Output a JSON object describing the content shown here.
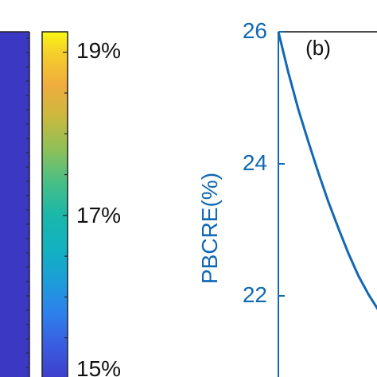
{
  "chart_data": [
    {
      "type": "heatmap",
      "colorbar": {
        "tick_labels": [
          "19%",
          "17%",
          "15%"
        ],
        "tick_values": [
          19,
          17,
          15
        ],
        "colormap": "parula",
        "stops": [
          {
            "value": 15,
            "color": "#3e3ecc"
          },
          {
            "value": 15.4,
            "color": "#3a5ce0"
          },
          {
            "value": 15.8,
            "color": "#2e80ec"
          },
          {
            "value": 16.2,
            "color": "#1c9ed8"
          },
          {
            "value": 16.6,
            "color": "#12b2c0"
          },
          {
            "value": 17.0,
            "color": "#1ab7ab"
          },
          {
            "value": 17.4,
            "color": "#47bf86"
          },
          {
            "value": 17.8,
            "color": "#8cc05a"
          },
          {
            "value": 18.2,
            "color": "#c9b93e"
          },
          {
            "value": 18.6,
            "color": "#f0ac3e"
          },
          {
            "value": 19.0,
            "color": "#f5d02a"
          },
          {
            "value": 19.25,
            "color": "#f9f712"
          }
        ]
      },
      "heatmap_color": "#3b38c4"
    },
    {
      "type": "line",
      "panel_label": "(b)",
      "ylabel": "PBCRE(%)",
      "ylim": [
        21.0,
        26
      ],
      "y_ticks": [
        22,
        24,
        26
      ],
      "y_tick_labels": [
        "22",
        "24",
        "26"
      ],
      "axis_color": "#1268b3",
      "series": [
        {
          "color": "#1268b3",
          "points": [
            [
              0.0,
              26.0
            ],
            [
              0.1,
              25.38
            ],
            [
              0.2,
              24.82
            ],
            [
              0.3,
              24.33
            ],
            [
              0.4,
              23.86
            ],
            [
              0.5,
              23.42
            ],
            [
              0.6,
              23.02
            ],
            [
              0.7,
              22.64
            ],
            [
              0.8,
              22.3
            ],
            [
              0.9,
              22.02
            ],
            [
              1.0,
              21.78
            ]
          ]
        }
      ]
    }
  ]
}
